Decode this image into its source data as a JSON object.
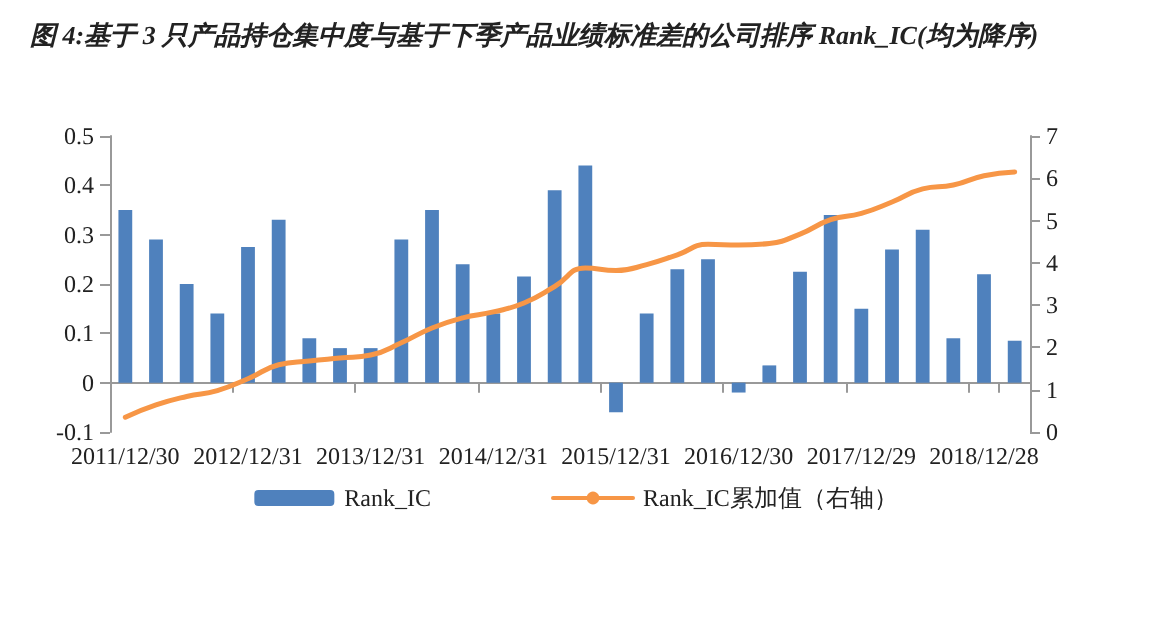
{
  "chart_data": {
    "type": "bar",
    "title": "图 4:基于 3 只产品持仓集中度与基于下季产品业绩标准差的公司排序 Rank_IC(均为降序)",
    "categories": [
      "2011/12/30",
      null,
      null,
      null,
      "2012/12/31",
      null,
      null,
      null,
      "2013/12/31",
      null,
      null,
      null,
      "2014/12/31",
      null,
      null,
      null,
      "2015/12/31",
      null,
      null,
      null,
      "2016/12/30",
      null,
      null,
      null,
      "2017/12/29",
      null,
      null,
      null,
      "2018/12/28",
      null
    ],
    "series": [
      {
        "name": "Rank_IC",
        "color": "#4f81bd",
        "values": [
          0.35,
          0.29,
          0.2,
          0.14,
          0.275,
          0.33,
          0.09,
          0.07,
          0.07,
          0.29,
          0.35,
          0.24,
          0.14,
          0.215,
          0.39,
          0.44,
          -0.06,
          0.14,
          0.23,
          0.25,
          -0.02,
          0.035,
          0.225,
          0.34,
          0.15,
          0.27,
          0.31,
          0.09,
          0.22,
          0.085
        ]
      },
      {
        "name": "Rank_IC累加值（右轴）",
        "type": "line",
        "axis": "y2",
        "color": "#f79646",
        "values": [
          0.35,
          0.64,
          0.84,
          0.98,
          1.26,
          1.59,
          1.68,
          1.75,
          1.82,
          2.11,
          2.46,
          2.7,
          2.84,
          3.05,
          3.44,
          3.88,
          3.82,
          3.96,
          4.19,
          4.44,
          4.42,
          4.46,
          4.68,
          5.02,
          5.17,
          5.44,
          5.75,
          5.84,
          6.06,
          6.15
        ]
      }
    ],
    "ylim": [
      -0.1,
      0.5
    ],
    "yticks": [
      -0.1,
      0,
      0.1,
      0.2,
      0.3,
      0.4,
      0.5
    ],
    "y2lim": [
      0,
      7
    ],
    "y2ticks": [
      0,
      1,
      2,
      3,
      4,
      5,
      6,
      7
    ],
    "legend": "bottom",
    "grid": false,
    "marker": "none",
    "line_style": "solid"
  }
}
